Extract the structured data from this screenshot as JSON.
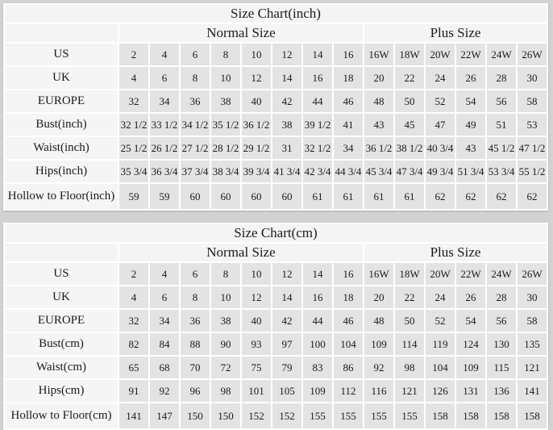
{
  "colors": {
    "page_background": "#d2d2d2",
    "cell_gap": "#ffffff",
    "header_cell": "#f4f4f4",
    "label_cell": "#f5f5f5",
    "value_cell": "#e3e3e3",
    "text": "#1a1a1a"
  },
  "tables": [
    {
      "title": "Size Chart(inch)",
      "group_headers": {
        "normal": "Normal Size",
        "plus": "Plus Size"
      },
      "rows": [
        {
          "label": "US",
          "normal": [
            "2",
            "4",
            "6",
            "8",
            "10",
            "12",
            "14",
            "16"
          ],
          "plus": [
            "16W",
            "18W",
            "20W",
            "22W",
            "24W",
            "26W"
          ]
        },
        {
          "label": "UK",
          "normal": [
            "4",
            "6",
            "8",
            "10",
            "12",
            "14",
            "16",
            "18"
          ],
          "plus": [
            "20",
            "22",
            "24",
            "26",
            "28",
            "30"
          ]
        },
        {
          "label": "EUROPE",
          "normal": [
            "32",
            "34",
            "36",
            "38",
            "40",
            "42",
            "44",
            "46"
          ],
          "plus": [
            "48",
            "50",
            "52",
            "54",
            "56",
            "58"
          ]
        },
        {
          "label": "Bust(inch)",
          "normal": [
            "32 1/2",
            "33 1/2",
            "34 1/2",
            "35 1/2",
            "36 1/2",
            "38",
            "39 1/2",
            "41"
          ],
          "plus": [
            "43",
            "45",
            "47",
            "49",
            "51",
            "53"
          ]
        },
        {
          "label": "Waist(inch)",
          "normal": [
            "25 1/2",
            "26 1/2",
            "27 1/2",
            "28 1/2",
            "29 1/2",
            "31",
            "32 1/2",
            "34"
          ],
          "plus": [
            "36 1/2",
            "38 1/2",
            "40 3/4",
            "43",
            "45 1/2",
            "47 1/2"
          ]
        },
        {
          "label": "Hips(inch)",
          "normal": [
            "35 3/4",
            "36 3/4",
            "37 3/4",
            "38 3/4",
            "39 3/4",
            "41 3/4",
            "42 3/4",
            "44 3/4"
          ],
          "plus": [
            "45 3/4",
            "47 3/4",
            "49 3/4",
            "51 3/4",
            "53 3/4",
            "55 1/2"
          ]
        },
        {
          "label": "Hollow to Floor(inch)",
          "normal": [
            "59",
            "59",
            "60",
            "60",
            "60",
            "60",
            "61",
            "61"
          ],
          "plus": [
            "61",
            "61",
            "62",
            "62",
            "62",
            "62"
          ]
        }
      ]
    },
    {
      "title": "Size Chart(cm)",
      "group_headers": {
        "normal": "Normal Size",
        "plus": "Plus Size"
      },
      "rows": [
        {
          "label": "US",
          "normal": [
            "2",
            "4",
            "6",
            "8",
            "10",
            "12",
            "14",
            "16"
          ],
          "plus": [
            "16W",
            "18W",
            "20W",
            "22W",
            "24W",
            "26W"
          ]
        },
        {
          "label": "UK",
          "normal": [
            "4",
            "6",
            "8",
            "10",
            "12",
            "14",
            "16",
            "18"
          ],
          "plus": [
            "20",
            "22",
            "24",
            "26",
            "28",
            "30"
          ]
        },
        {
          "label": "EUROPE",
          "normal": [
            "32",
            "34",
            "36",
            "38",
            "40",
            "42",
            "44",
            "46"
          ],
          "plus": [
            "48",
            "50",
            "52",
            "54",
            "56",
            "58"
          ]
        },
        {
          "label": "Bust(cm)",
          "normal": [
            "82",
            "84",
            "88",
            "90",
            "93",
            "97",
            "100",
            "104"
          ],
          "plus": [
            "109",
            "114",
            "119",
            "124",
            "130",
            "135"
          ]
        },
        {
          "label": "Waist(cm)",
          "normal": [
            "65",
            "68",
            "70",
            "72",
            "75",
            "79",
            "83",
            "86"
          ],
          "plus": [
            "92",
            "98",
            "104",
            "109",
            "115",
            "121"
          ]
        },
        {
          "label": "Hips(cm)",
          "normal": [
            "91",
            "92",
            "96",
            "98",
            "101",
            "105",
            "109",
            "112"
          ],
          "plus": [
            "116",
            "121",
            "126",
            "131",
            "136",
            "141"
          ]
        },
        {
          "label": "Hollow to Floor(cm)",
          "normal": [
            "141",
            "147",
            "150",
            "150",
            "152",
            "152",
            "155",
            "155"
          ],
          "plus": [
            "155",
            "155",
            "158",
            "158",
            "158",
            "158"
          ]
        }
      ]
    }
  ]
}
